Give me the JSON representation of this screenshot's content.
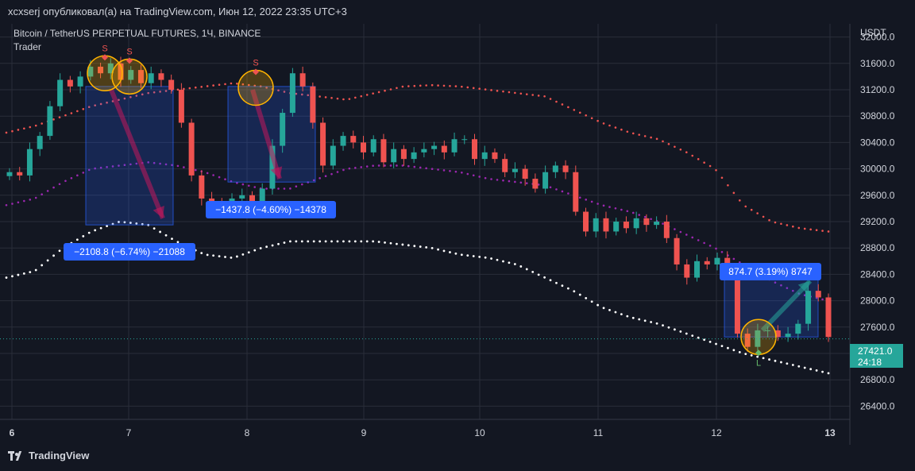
{
  "header": {
    "byline": "xcxserj опубликовал(а) на TradingView.com, Июн 12, 2022 23:35 UTC+3"
  },
  "chart_title": "Bitcoin / TetherUS PERPETUAL FUTURES, 1Ч, BINANCE",
  "chart_subtitle": "Trader",
  "currency": "USDT",
  "last_price": "27421.0",
  "countdown": "24:18",
  "footer": {
    "brand": "TradingView"
  },
  "colors": {
    "background": "#131722",
    "up": "#26a69a",
    "down": "#ef5350",
    "upper_band": "#ef5350",
    "mid_band": "#9c27b0",
    "lower_band": "#ffffff",
    "label_bg": "#2962ff"
  },
  "chart_data": {
    "type": "candlestick",
    "x_ticks": [
      "6",
      "7",
      "8",
      "9",
      "10",
      "11",
      "12",
      "13"
    ],
    "y_ticks": [
      26400,
      26800,
      27200,
      27600,
      28000,
      28400,
      28800,
      29200,
      29600,
      30000,
      30400,
      30800,
      31200,
      31600,
      32000
    ],
    "ylim": [
      26200,
      32200
    ],
    "close_series": [
      29950,
      29900,
      30300,
      30500,
      30950,
      31350,
      31250,
      31400,
      31550,
      31450,
      31600,
      31350,
      31500,
      31300,
      31450,
      31350,
      31200,
      30700,
      29900,
      29550,
      29500,
      29450,
      29550,
      29600,
      29500,
      29700,
      30350,
      30850,
      31450,
      31250,
      30700,
      30050,
      30350,
      30500,
      30400,
      30250,
      30450,
      30100,
      30300,
      30150,
      30250,
      30300,
      30350,
      30250,
      30450,
      30450,
      30150,
      30250,
      30150,
      29950,
      30000,
      29850,
      29700,
      29950,
      30050,
      29950,
      29350,
      29050,
      29250,
      29050,
      29200,
      29100,
      29250,
      29150,
      29200,
      28950,
      28550,
      28350,
      28600,
      28550,
      28650,
      28500,
      27500,
      27300,
      27550,
      27550,
      27450,
      27500,
      27650,
      28150,
      28050,
      27450
    ],
    "upper_band": [
      30550,
      30650,
      30800,
      30950,
      31050,
      31150,
      31200,
      31250,
      31300,
      31250,
      31150,
      31100,
      31050,
      31150,
      31250,
      31270,
      31250,
      31200,
      31150,
      31100,
      30900,
      30700,
      30550,
      30450,
      30250,
      30000,
      29450,
      29200,
      29100,
      29050
    ],
    "mid_band": [
      29450,
      29550,
      29800,
      30000,
      30050,
      30100,
      30050,
      29950,
      29800,
      29700,
      29700,
      29850,
      30000,
      30050,
      30050,
      30000,
      29950,
      29850,
      29800,
      29750,
      29600,
      29450,
      29350,
      29200,
      29000,
      28800,
      28550,
      28300,
      28100,
      28000
    ],
    "lower_band": [
      28350,
      28450,
      28800,
      29050,
      29200,
      29150,
      28900,
      28700,
      28650,
      28800,
      28900,
      28900,
      28900,
      28900,
      28850,
      28800,
      28700,
      28650,
      28550,
      28350,
      28150,
      27900,
      27750,
      27650,
      27500,
      27350,
      27200,
      27100,
      27000,
      26900
    ],
    "annotations": [
      {
        "kind": "short",
        "label": "−2108.8 (−6.74%) −21088",
        "signal": "S"
      },
      {
        "kind": "short",
        "label": "−1437.8 (−4.60%) −14378",
        "signal": "S"
      },
      {
        "kind": "long",
        "label": "874.7 (3.19%) 8747",
        "signal": "L"
      }
    ]
  }
}
